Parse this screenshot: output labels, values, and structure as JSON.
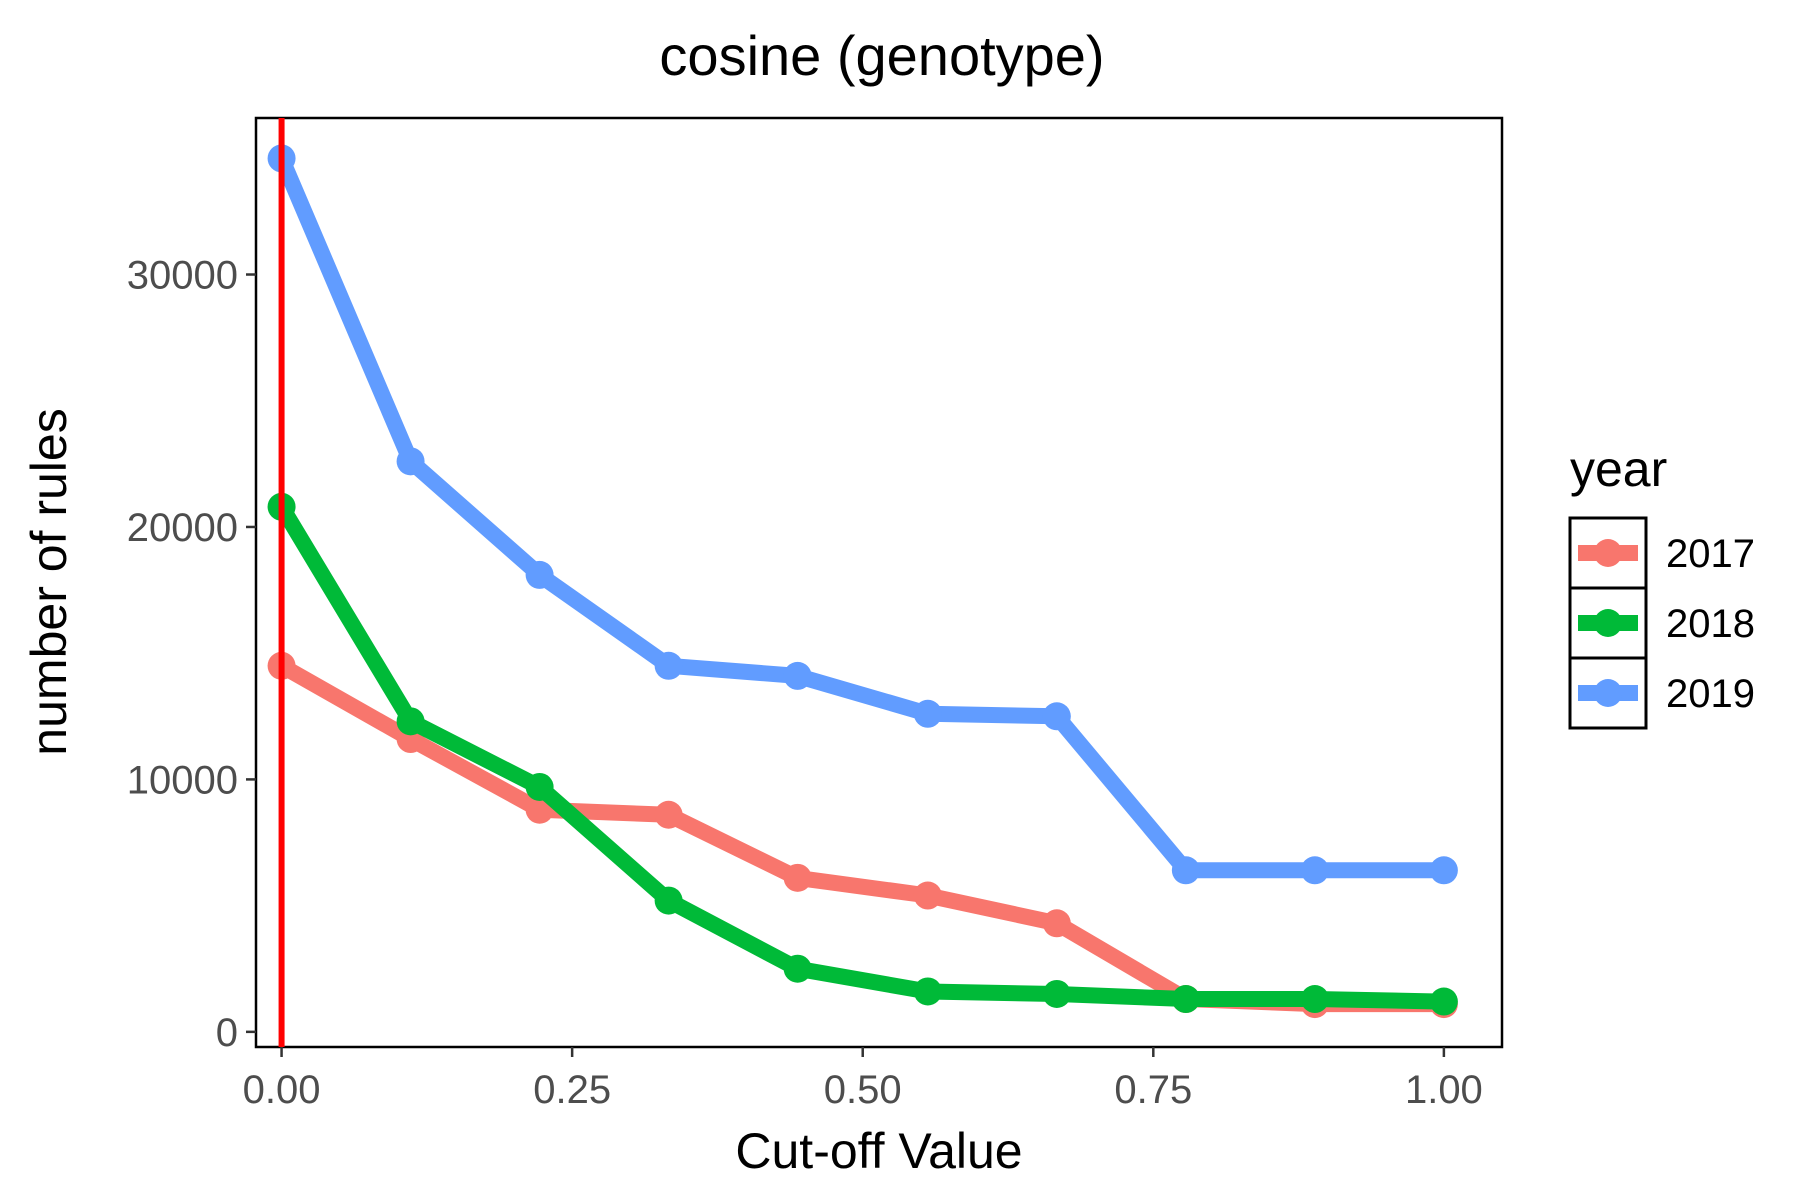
{
  "chart_data": {
    "type": "line",
    "title": "cosine (genotype)",
    "xlabel": "Cut-off Value",
    "ylabel": "number of rules",
    "xlim": [
      -0.022,
      1.05
    ],
    "ylim": [
      -600,
      36200
    ],
    "xticks": [
      0,
      0.25,
      0.5,
      0.75,
      1
    ],
    "xtick_labels": [
      "0.00",
      "0.25",
      "0.50",
      "0.75",
      "1.00"
    ],
    "yticks": [
      0,
      10000,
      20000,
      30000
    ],
    "ytick_labels": [
      "0",
      "10000",
      "20000",
      "30000"
    ],
    "grid": false,
    "vline": {
      "x": 0,
      "color": "#FF0000"
    },
    "legend": {
      "title": "year",
      "position": "right"
    },
    "x": [
      0,
      0.111,
      0.222,
      0.333,
      0.444,
      0.556,
      0.667,
      0.778,
      0.889,
      1.0
    ],
    "series": [
      {
        "name": "2017",
        "color": "#F8766D",
        "values": [
          14500,
          11600,
          8800,
          8600,
          6100,
          5400,
          4300,
          1300,
          1100,
          1100
        ]
      },
      {
        "name": "2018",
        "color": "#00BA38",
        "values": [
          20800,
          12300,
          9700,
          5200,
          2500,
          1600,
          1500,
          1300,
          1300,
          1200
        ]
      },
      {
        "name": "2019",
        "color": "#619CFF",
        "values": [
          34600,
          22600,
          18100,
          14500,
          14100,
          12600,
          12500,
          6400,
          6400,
          6400
        ]
      }
    ]
  }
}
